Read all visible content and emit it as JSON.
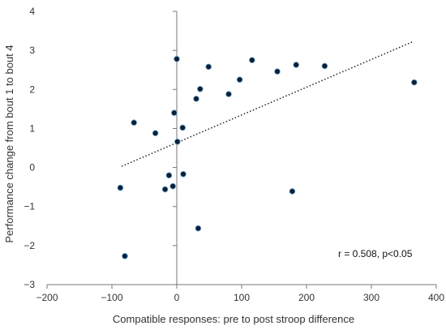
{
  "chart_data": {
    "type": "scatter",
    "title": "",
    "xlabel": "Compatible responses: pre to post stroop difference",
    "ylabel": "Performance change from bout 1 to bout 4",
    "xlim": [
      -200,
      400
    ],
    "ylim": [
      -3,
      4
    ],
    "xticks": [
      -200,
      -100,
      0,
      100,
      200,
      300,
      400
    ],
    "yticks": [
      -3,
      -2,
      -1,
      0,
      1,
      2,
      3,
      4
    ],
    "xtick_labels": [
      "−200",
      "−100",
      "0",
      "100",
      "200",
      "300",
      "400"
    ],
    "ytick_labels": [
      "−3",
      "−2",
      "−1",
      "0",
      "1",
      "2",
      "3",
      "4"
    ],
    "grid": false,
    "point_color": "#0a1f3a",
    "trendline": {
      "style": "dotted",
      "x": [
        -85,
        365
      ],
      "y": [
        0.03,
        3.23
      ]
    },
    "annotation": "r = 0.508, p<0.05",
    "annotation_position": "bottom-right",
    "series": [
      {
        "points": [
          [
            -87,
            -0.52
          ],
          [
            -80,
            -2.27
          ],
          [
            -66,
            1.15
          ],
          [
            -33,
            0.88
          ],
          [
            -18,
            -0.56
          ],
          [
            -12,
            -0.2
          ],
          [
            -6,
            -0.48
          ],
          [
            -4,
            1.4
          ],
          [
            0,
            2.78
          ],
          [
            1,
            0.66
          ],
          [
            9,
            1.02
          ],
          [
            10,
            -0.17
          ],
          [
            30,
            1.76
          ],
          [
            33,
            -1.56
          ],
          [
            36,
            2.01
          ],
          [
            49,
            2.58
          ],
          [
            80,
            1.88
          ],
          [
            97,
            2.25
          ],
          [
            116,
            2.75
          ],
          [
            155,
            2.46
          ],
          [
            178,
            -0.61
          ],
          [
            184,
            2.63
          ],
          [
            228,
            2.6
          ],
          [
            366,
            2.18
          ]
        ]
      }
    ]
  }
}
